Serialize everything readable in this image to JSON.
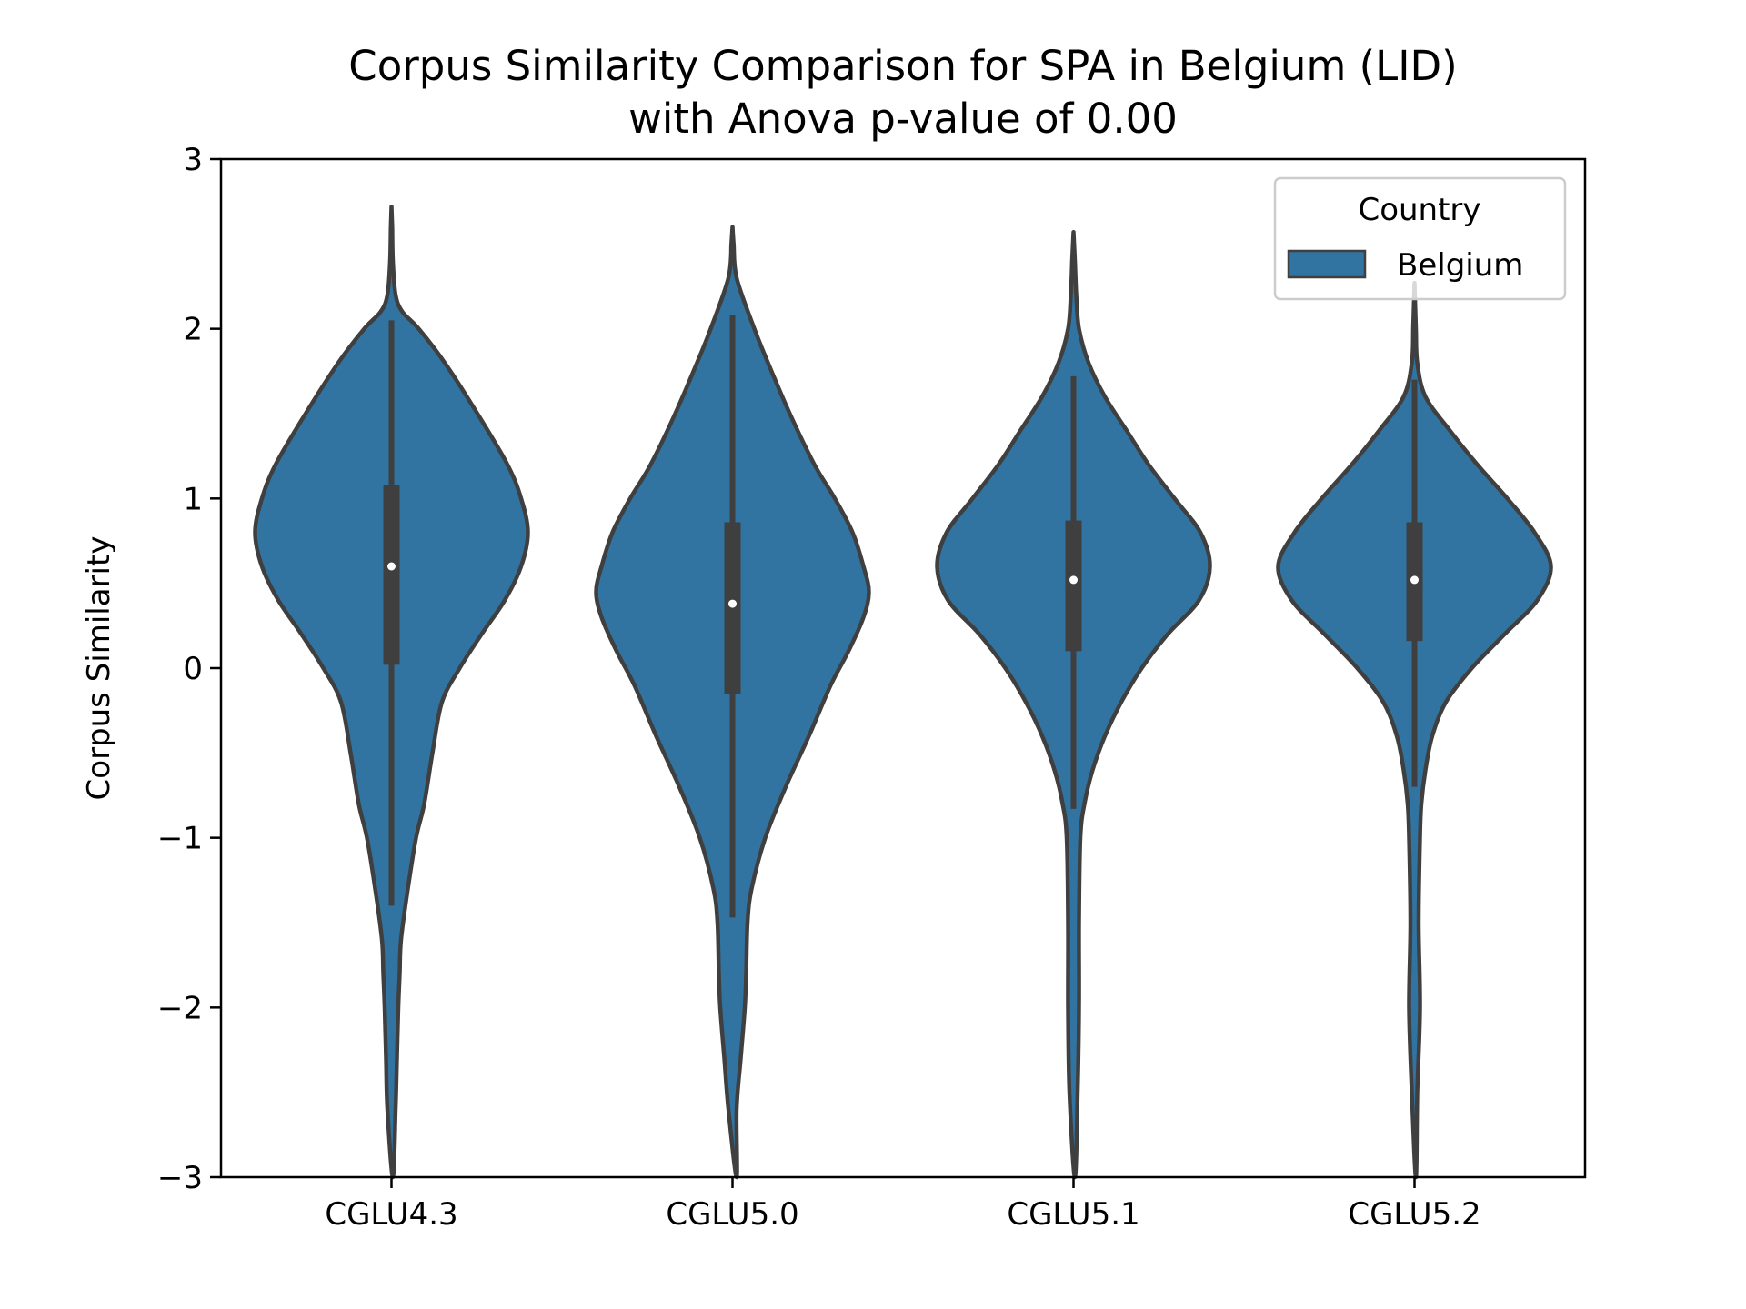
{
  "chart_data": {
    "type": "violin",
    "title_line1": "Corpus Similarity Comparison for SPA in Belgium (LID)",
    "title_line2": "with Anova p-value of 0.00",
    "xlabel": "",
    "ylabel": "Corpus Similarity",
    "ylim": [
      -3,
      3
    ],
    "yticks": [
      3,
      2,
      1,
      0,
      -1,
      -2,
      -3
    ],
    "ytick_labels": [
      "3",
      "2",
      "1",
      "0",
      "−1",
      "−2",
      "−3"
    ],
    "categories": [
      "CGLU4.3",
      "CGLU5.0",
      "CGLU5.1",
      "CGLU5.2"
    ],
    "grid": false,
    "legend": {
      "title": "Country",
      "entries": [
        "Belgium"
      ],
      "placement": "upper right"
    },
    "colors": {
      "violin_fill": "#3274a1",
      "violin_edge": "#3f3f3f",
      "box": "#3f3f3f",
      "median": "#ffffff"
    },
    "series": [
      {
        "name": "Belgium",
        "stats": [
          {
            "category": "CGLU4.3",
            "median": 0.6,
            "q1": 0.02,
            "q3": 1.08,
            "whisker_low": -1.4,
            "whisker_high": 2.05,
            "min": -3.0,
            "max": 2.72
          },
          {
            "category": "CGLU5.0",
            "median": 0.38,
            "q1": -0.15,
            "q3": 0.86,
            "whisker_low": -1.47,
            "whisker_high": 2.08,
            "min": -3.0,
            "max": 2.6
          },
          {
            "category": "CGLU5.1",
            "median": 0.52,
            "q1": 0.1,
            "q3": 0.87,
            "whisker_low": -0.83,
            "whisker_high": 1.72,
            "min": -3.0,
            "max": 2.57
          },
          {
            "category": "CGLU5.2",
            "median": 0.52,
            "q1": 0.16,
            "q3": 0.86,
            "whisker_low": -0.7,
            "whisker_high": 1.7,
            "min": -3.0,
            "max": 2.27
          }
        ],
        "density_profiles": [
          [
            [
              2.72,
              0.0
            ],
            [
              2.6,
              0.005
            ],
            [
              2.4,
              0.01
            ],
            [
              2.2,
              0.03
            ],
            [
              2.1,
              0.08
            ],
            [
              2.0,
              0.2
            ],
            [
              1.8,
              0.39
            ],
            [
              1.5,
              0.63
            ],
            [
              1.2,
              0.85
            ],
            [
              1.0,
              0.95
            ],
            [
              0.8,
              1.0
            ],
            [
              0.6,
              0.95
            ],
            [
              0.4,
              0.83
            ],
            [
              0.2,
              0.66
            ],
            [
              0.0,
              0.5
            ],
            [
              -0.2,
              0.37
            ],
            [
              -0.5,
              0.3
            ],
            [
              -0.8,
              0.24
            ],
            [
              -1.0,
              0.18
            ],
            [
              -1.3,
              0.12
            ],
            [
              -1.6,
              0.07
            ],
            [
              -1.8,
              0.06
            ],
            [
              -2.0,
              0.05
            ],
            [
              -2.3,
              0.04
            ],
            [
              -2.6,
              0.03
            ],
            [
              -3.0,
              0.01
            ]
          ],
          [
            [
              2.6,
              0.0
            ],
            [
              2.5,
              0.008
            ],
            [
              2.3,
              0.03
            ],
            [
              2.0,
              0.16
            ],
            [
              1.8,
              0.26
            ],
            [
              1.5,
              0.42
            ],
            [
              1.2,
              0.6
            ],
            [
              1.0,
              0.75
            ],
            [
              0.8,
              0.88
            ],
            [
              0.6,
              0.96
            ],
            [
              0.45,
              1.0
            ],
            [
              0.3,
              0.96
            ],
            [
              0.1,
              0.85
            ],
            [
              -0.1,
              0.72
            ],
            [
              -0.4,
              0.56
            ],
            [
              -0.7,
              0.39
            ],
            [
              -1.0,
              0.24
            ],
            [
              -1.3,
              0.14
            ],
            [
              -1.5,
              0.11
            ],
            [
              -1.8,
              0.1
            ],
            [
              -2.0,
              0.09
            ],
            [
              -2.3,
              0.06
            ],
            [
              -2.6,
              0.03
            ],
            [
              -3.0,
              0.03
            ]
          ],
          [
            [
              2.57,
              0.0
            ],
            [
              2.4,
              0.01
            ],
            [
              2.2,
              0.02
            ],
            [
              2.0,
              0.04
            ],
            [
              1.8,
              0.11
            ],
            [
              1.6,
              0.23
            ],
            [
              1.4,
              0.39
            ],
            [
              1.2,
              0.55
            ],
            [
              1.0,
              0.74
            ],
            [
              0.8,
              0.93
            ],
            [
              0.6,
              1.0
            ],
            [
              0.4,
              0.92
            ],
            [
              0.2,
              0.69
            ],
            [
              0.0,
              0.5
            ],
            [
              -0.2,
              0.35
            ],
            [
              -0.4,
              0.23
            ],
            [
              -0.6,
              0.14
            ],
            [
              -0.8,
              0.08
            ],
            [
              -1.0,
              0.05
            ],
            [
              -1.5,
              0.04
            ],
            [
              -2.0,
              0.04
            ],
            [
              -2.5,
              0.03
            ],
            [
              -3.0,
              0.01
            ]
          ],
          [
            [
              2.27,
              0.0
            ],
            [
              2.0,
              0.01
            ],
            [
              1.8,
              0.02
            ],
            [
              1.6,
              0.08
            ],
            [
              1.4,
              0.26
            ],
            [
              1.2,
              0.46
            ],
            [
              1.0,
              0.68
            ],
            [
              0.8,
              0.88
            ],
            [
              0.6,
              1.0
            ],
            [
              0.4,
              0.9
            ],
            [
              0.2,
              0.66
            ],
            [
              0.0,
              0.42
            ],
            [
              -0.2,
              0.23
            ],
            [
              -0.4,
              0.13
            ],
            [
              -0.6,
              0.08
            ],
            [
              -0.8,
              0.05
            ],
            [
              -1.0,
              0.04
            ],
            [
              -1.5,
              0.03
            ],
            [
              -2.0,
              0.04
            ],
            [
              -2.5,
              0.02
            ],
            [
              -3.0,
              0.01
            ]
          ]
        ]
      }
    ]
  }
}
